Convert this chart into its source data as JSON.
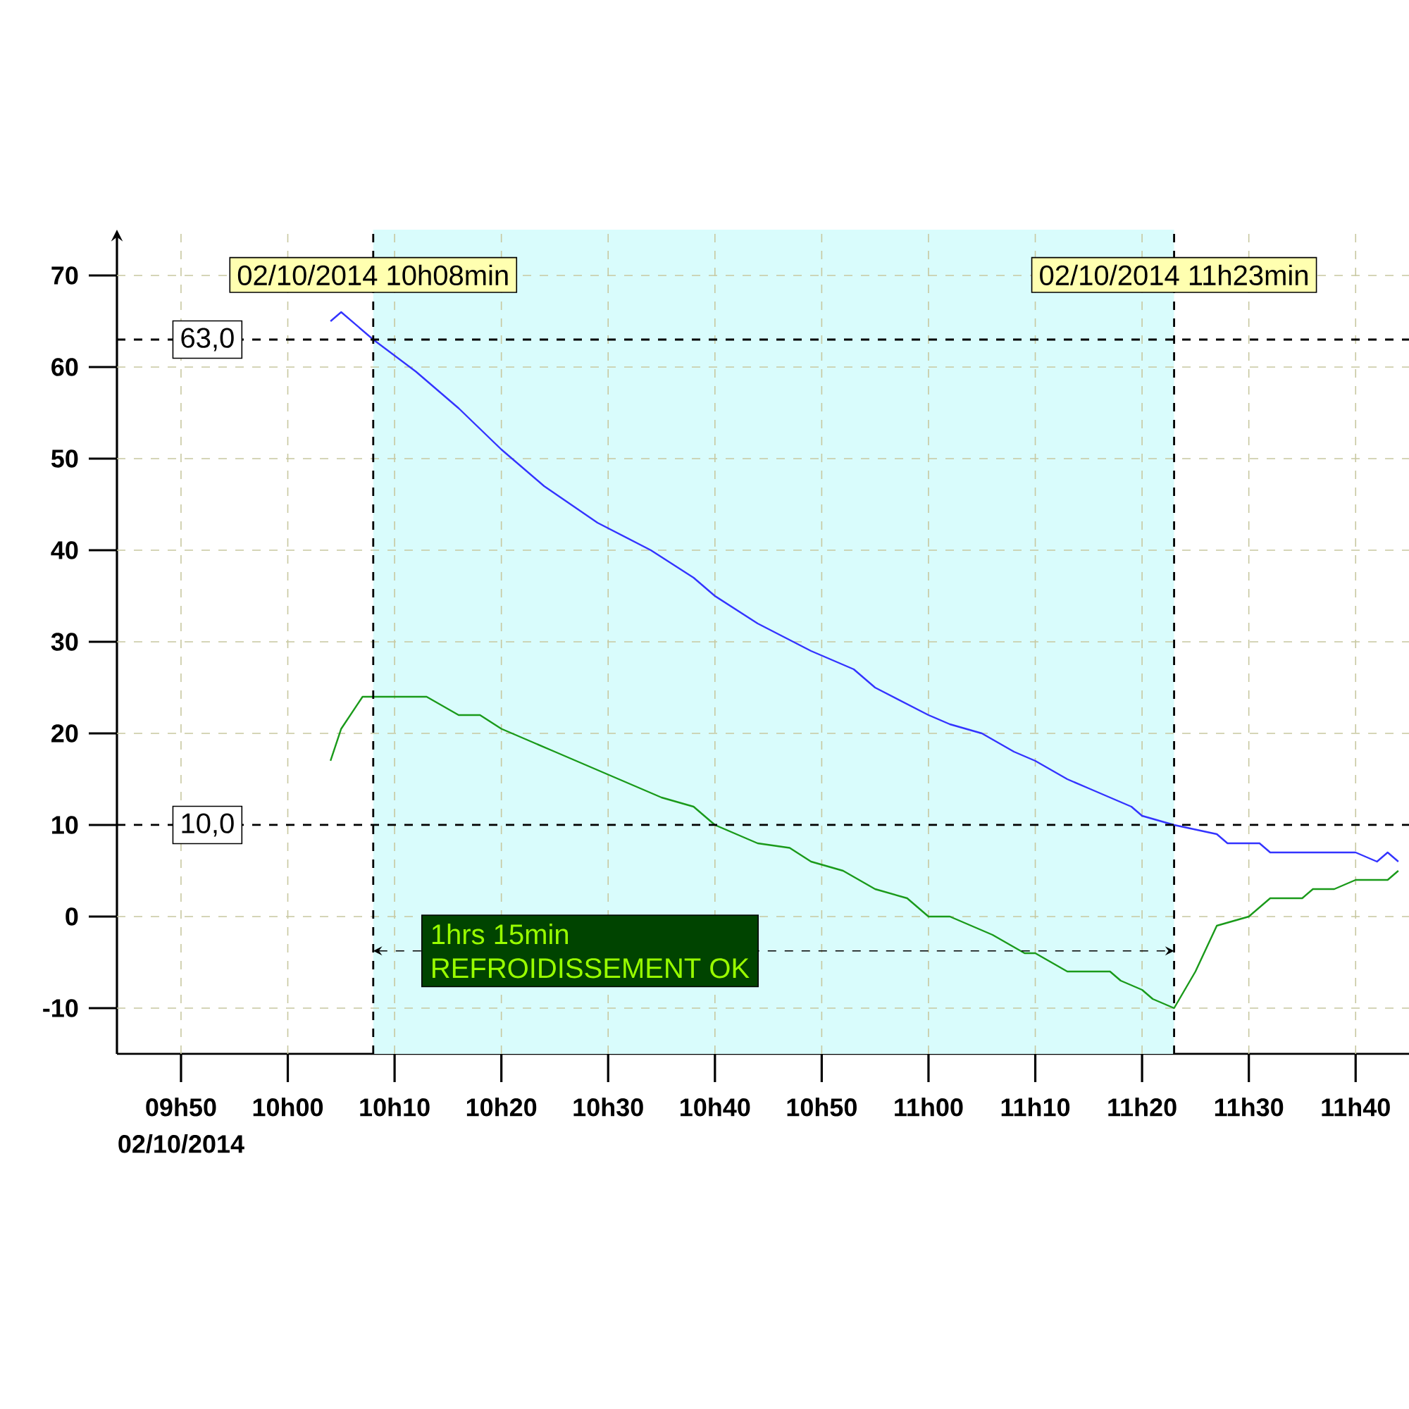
{
  "chart_data": {
    "type": "line",
    "xlabel": "02/10/2014",
    "xlim": [
      "2014-10-02T09:44",
      "2014-10-02T11:45"
    ],
    "ylim": [
      -15,
      75
    ],
    "xticks": [
      {
        "value": "2014-10-02T09:50",
        "label": "09h50"
      },
      {
        "value": "2014-10-02T10:00",
        "label": "10h00"
      },
      {
        "value": "2014-10-02T10:10",
        "label": "10h10"
      },
      {
        "value": "2014-10-02T10:20",
        "label": "10h20"
      },
      {
        "value": "2014-10-02T10:30",
        "label": "10h30"
      },
      {
        "value": "2014-10-02T10:40",
        "label": "10h40"
      },
      {
        "value": "2014-10-02T10:50",
        "label": "10h50"
      },
      {
        "value": "2014-10-02T11:00",
        "label": "11h00"
      },
      {
        "value": "2014-10-02T11:10",
        "label": "11h10"
      },
      {
        "value": "2014-10-02T11:20",
        "label": "11h20"
      },
      {
        "value": "2014-10-02T11:30",
        "label": "11h30"
      },
      {
        "value": "2014-10-02T11:40",
        "label": "11h40"
      }
    ],
    "yticks": [
      -10,
      0,
      10,
      20,
      30,
      40,
      50,
      60,
      70
    ],
    "grid": true,
    "series": [
      {
        "color": "#3333ff",
        "x": [
          "2014-10-02T10:04",
          "2014-10-02T10:05",
          "2014-10-02T10:08",
          "2014-10-02T10:12",
          "2014-10-02T10:16",
          "2014-10-02T10:20",
          "2014-10-02T10:24",
          "2014-10-02T10:29",
          "2014-10-02T10:34",
          "2014-10-02T10:38",
          "2014-10-02T10:40",
          "2014-10-02T10:44",
          "2014-10-02T10:49",
          "2014-10-02T10:53",
          "2014-10-02T10:55",
          "2014-10-02T11:00",
          "2014-10-02T11:02",
          "2014-10-02T11:05",
          "2014-10-02T11:08",
          "2014-10-02T11:10",
          "2014-10-02T11:13",
          "2014-10-02T11:15",
          "2014-10-02T11:17",
          "2014-10-02T11:19",
          "2014-10-02T11:20",
          "2014-10-02T11:23",
          "2014-10-02T11:27",
          "2014-10-02T11:28",
          "2014-10-02T11:31",
          "2014-10-02T11:32",
          "2014-10-02T11:40",
          "2014-10-02T11:42",
          "2014-10-02T11:43",
          "2014-10-02T11:44"
        ],
        "values": [
          65,
          66,
          63,
          59.5,
          55.5,
          51,
          47,
          43,
          40,
          37,
          35,
          32,
          29,
          27,
          25,
          22,
          21,
          20,
          18,
          17,
          15,
          14,
          13,
          12,
          11,
          10,
          9,
          8,
          8,
          7,
          7,
          6,
          7,
          6
        ]
      },
      {
        "color": "#1a9a1a",
        "x": [
          "2014-10-02T10:04",
          "2014-10-02T10:05",
          "2014-10-02T10:07",
          "2014-10-02T10:13",
          "2014-10-02T10:16",
          "2014-10-02T10:18",
          "2014-10-02T10:20",
          "2014-10-02T10:23",
          "2014-10-02T10:25",
          "2014-10-02T10:28",
          "2014-10-02T10:31",
          "2014-10-02T10:33",
          "2014-10-02T10:35",
          "2014-10-02T10:38",
          "2014-10-02T10:40",
          "2014-10-02T10:43",
          "2014-10-02T10:44",
          "2014-10-02T10:47",
          "2014-10-02T10:49",
          "2014-10-02T10:52",
          "2014-10-02T10:55",
          "2014-10-02T10:58",
          "2014-10-02T11:00",
          "2014-10-02T11:02",
          "2014-10-02T11:04",
          "2014-10-02T11:06",
          "2014-10-02T11:09",
          "2014-10-02T11:10",
          "2014-10-02T11:13",
          "2014-10-02T11:17",
          "2014-10-02T11:18",
          "2014-10-02T11:20",
          "2014-10-02T11:21",
          "2014-10-02T11:23",
          "2014-10-02T11:25",
          "2014-10-02T11:27",
          "2014-10-02T11:30",
          "2014-10-02T11:32",
          "2014-10-02T11:35",
          "2014-10-02T11:36",
          "2014-10-02T11:38",
          "2014-10-02T11:40",
          "2014-10-02T11:43",
          "2014-10-02T11:44"
        ],
        "values": [
          17,
          20.5,
          24,
          24,
          22,
          22,
          20.5,
          19,
          18,
          16.5,
          15,
          14,
          13,
          12,
          10,
          8.5,
          8,
          7.5,
          6,
          5,
          3,
          2,
          0,
          0,
          -1,
          -2,
          -4,
          -4,
          -6,
          -6,
          -7,
          -8,
          -9,
          -10,
          -6,
          -1,
          0,
          2,
          2,
          3,
          3,
          4,
          4,
          5
        ]
      }
    ],
    "ref_lines": [
      {
        "axis": "x",
        "value": "2014-10-02T10:08",
        "label": "02/10/2014 10h08min",
        "line_style": "dashed"
      },
      {
        "axis": "x",
        "value": "2014-10-02T11:23",
        "label": "02/10/2014 11h23min",
        "line_style": "dashed"
      },
      {
        "axis": "y",
        "value": 63,
        "label": "63,0",
        "line_style": "dashed"
      },
      {
        "axis": "y",
        "value": 10,
        "label": "10,0",
        "line_style": "dashed"
      }
    ],
    "bands": [
      {
        "axis": "x",
        "from": "2014-10-02T10:08",
        "to": "2014-10-02T11:23",
        "label": "1hrs 15min",
        "color": "#d9fcfc"
      }
    ],
    "annotations": [
      "REFROIDISSEMENT OK"
    ]
  }
}
